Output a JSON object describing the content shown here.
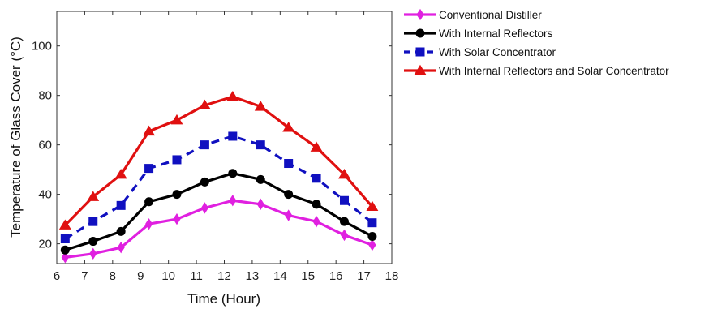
{
  "chart_data": {
    "type": "line",
    "xlabel": "Time (Hour)",
    "ylabel": "Temperature of Glass Cover (°C)",
    "xlim": [
      6,
      18
    ],
    "ylim": [
      12,
      114
    ],
    "x_ticks": [
      6,
      7,
      8,
      9,
      10,
      11,
      12,
      13,
      14,
      15,
      16,
      17,
      18
    ],
    "y_ticks": [
      20,
      40,
      60,
      80,
      100
    ],
    "grid": false,
    "legend_position": "outside-right",
    "x": [
      6.3,
      7.3,
      8.3,
      9.3,
      10.3,
      11.3,
      12.3,
      13.3,
      14.3,
      15.3,
      16.3,
      17.3
    ],
    "series": [
      {
        "name": "Conventional Distiller",
        "color": "#e020e0",
        "marker": "diamond",
        "dash": "solid",
        "values": [
          14.5,
          16,
          18.5,
          28,
          30,
          34.5,
          37.5,
          36,
          31.5,
          29,
          23.5,
          19.5
        ]
      },
      {
        "name": "With Internal Reflectors",
        "color": "#000000",
        "marker": "circle",
        "dash": "solid",
        "values": [
          17.5,
          21,
          25,
          37,
          40,
          45,
          48.5,
          46,
          40,
          36,
          29,
          23
        ]
      },
      {
        "name": " With Solar Concentrator",
        "color": "#1010c0",
        "marker": "square",
        "dash": "dashed",
        "values": [
          22,
          29,
          35.5,
          50.5,
          54,
          60,
          63.5,
          60,
          52.5,
          46.5,
          37.5,
          28.5
        ]
      },
      {
        "name": "With Internal Reflectors and Solar Concentrator",
        "color": "#e01010",
        "marker": "triangle",
        "dash": "solid",
        "values": [
          27.5,
          39,
          48,
          65.5,
          70,
          76,
          79.5,
          75.5,
          67,
          59,
          48,
          35
        ]
      }
    ]
  }
}
